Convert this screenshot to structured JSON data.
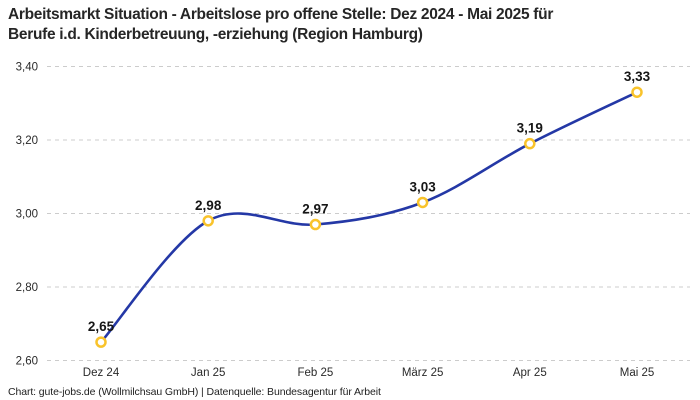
{
  "title_lines": [
    "Arbeitsmarkt Situation - Arbeitslose pro offene Stelle: Dez 2024 - Mai 2025 für",
    "Berufe i.d. Kinderbetreuung, -erziehung (Region Hamburg)"
  ],
  "footer": {
    "text": "Chart: gute-jobs.de (Wollmilchsau GmbH) | Datenquelle: Bundesagentur für Arbeit"
  },
  "chart_data": {
    "type": "line",
    "title": "Arbeitsmarkt Situation - Arbeitslose pro offene Stelle: Dez 2024 - Mai 2025 für Berufe i.d. Kinderbetreuung, -erziehung (Region Hamburg)",
    "categories": [
      "Dez 24",
      "Jan 25",
      "Feb 25",
      "März 25",
      "Apr 25",
      "Mai 25"
    ],
    "values": [
      2.65,
      2.98,
      2.97,
      3.03,
      3.19,
      3.33
    ],
    "value_labels": [
      "2,65",
      "2,98",
      "2,97",
      "3,03",
      "3,19",
      "3,33"
    ],
    "xlabel": "",
    "ylabel": "",
    "ylim": [
      2.6,
      3.4
    ],
    "yticks": [
      2.6,
      2.8,
      3.0,
      3.2,
      3.4
    ],
    "ytick_labels": [
      "2,60",
      "2,80",
      "3,00",
      "3,20",
      "3,40"
    ],
    "grid": "horizontal-dashed",
    "legend": "none",
    "line_smoothing": "spline",
    "colors": {
      "line": "#2438a6",
      "marker_ring": "#f9c32b",
      "marker_fill": "#ffffff",
      "gridline": "#cccccc",
      "axis_text": "#2a2a2a",
      "value_label_text": "#161616"
    }
  }
}
